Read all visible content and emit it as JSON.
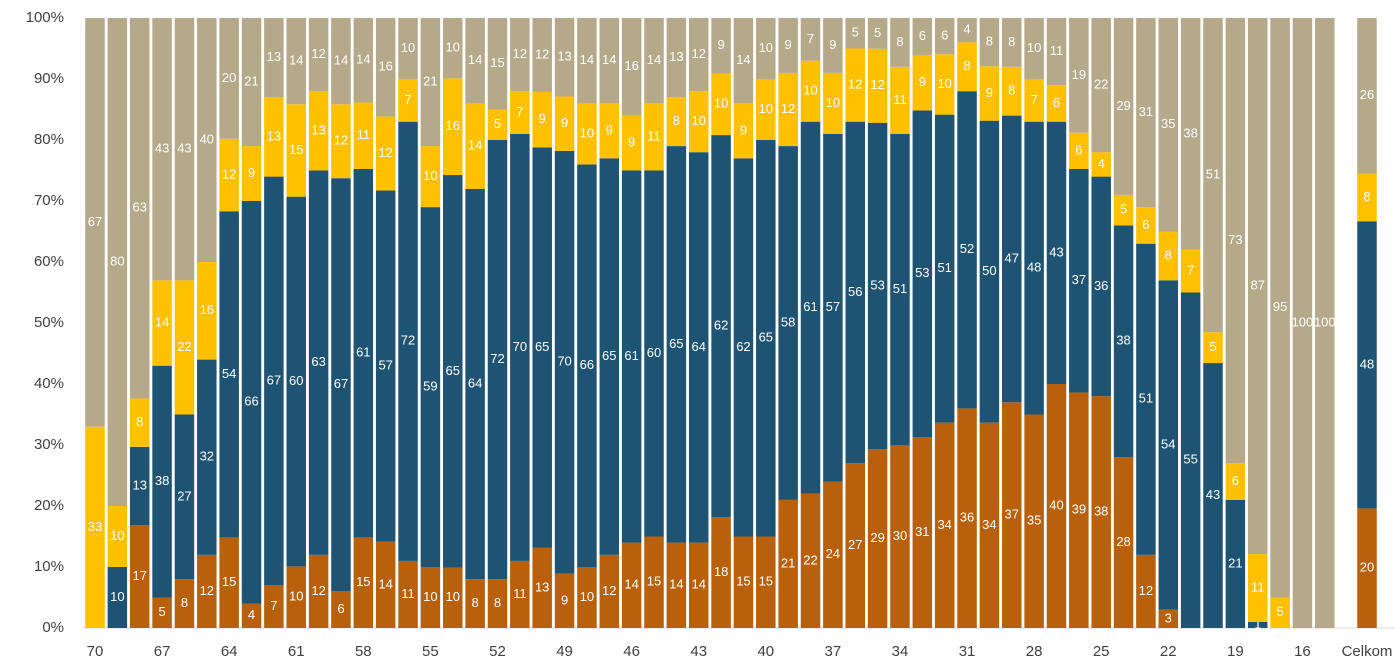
{
  "chart_data": {
    "type": "bar",
    "stacked": "percent",
    "categories": [
      "70",
      null,
      null,
      "67",
      null,
      null,
      "64",
      null,
      null,
      "61",
      null,
      null,
      "58",
      null,
      null,
      "55",
      null,
      null,
      "52",
      null,
      null,
      "49",
      null,
      null,
      "46",
      null,
      null,
      "43",
      null,
      null,
      "40",
      null,
      null,
      "37",
      null,
      null,
      "34",
      null,
      null,
      "31",
      null,
      null,
      "28",
      null,
      null,
      "25",
      null,
      null,
      "22",
      null,
      null,
      "19",
      null,
      null,
      "16",
      null,
      "Celkom"
    ],
    "series": [
      {
        "color": "#b8600b",
        "values": [
          0,
          0,
          17,
          5,
          8,
          12,
          15,
          4,
          7,
          10,
          12,
          6,
          15,
          14,
          11,
          10,
          10,
          8,
          8,
          11,
          13,
          9,
          10,
          12,
          14,
          15,
          14,
          14,
          18,
          15,
          15,
          21,
          22,
          24,
          27,
          29,
          30,
          31,
          34,
          36,
          34,
          37,
          35,
          40,
          39,
          38,
          28,
          12,
          3,
          0,
          0,
          0,
          0,
          0,
          0,
          0,
          20
        ]
      },
      {
        "color": "#1f5373",
        "values": [
          0,
          10,
          13,
          38,
          27,
          32,
          54,
          66,
          67,
          60,
          63,
          67,
          61,
          57,
          72,
          59,
          65,
          64,
          72,
          70,
          65,
          70,
          66,
          65,
          61,
          60,
          65,
          64,
          62,
          62,
          65,
          58,
          61,
          57,
          56,
          53,
          51,
          53,
          51,
          52,
          50,
          47,
          48,
          43,
          37,
          36,
          38,
          51,
          54,
          55,
          43,
          21,
          1,
          0,
          0,
          0,
          48
        ]
      },
      {
        "color": "#ffc000",
        "values": [
          33,
          10,
          8,
          14,
          22,
          16,
          12,
          9,
          13,
          15,
          13,
          12,
          11,
          12,
          7,
          10,
          16,
          14,
          5,
          7,
          9,
          9,
          10,
          9,
          9,
          11,
          8,
          10,
          10,
          9,
          10,
          12,
          10,
          10,
          12,
          12,
          11,
          9,
          10,
          8,
          9,
          8,
          7,
          6,
          6,
          4,
          5,
          6,
          8,
          7,
          5,
          6,
          11,
          5,
          0,
          0,
          8
        ]
      },
      {
        "color": "#b5a98a",
        "values": [
          67,
          80,
          63,
          43,
          43,
          40,
          20,
          21,
          13,
          14,
          12,
          14,
          14,
          16,
          10,
          21,
          10,
          14,
          15,
          12,
          12,
          13,
          14,
          14,
          16,
          14,
          13,
          12,
          9,
          14,
          10,
          9,
          7,
          9,
          5,
          5,
          8,
          6,
          6,
          4,
          8,
          8,
          10,
          11,
          19,
          22,
          29,
          31,
          35,
          38,
          51,
          73,
          87,
          95,
          100,
          100,
          26
        ]
      }
    ],
    "ylim": [
      0,
      100
    ],
    "yticks": [
      {
        "value": 0,
        "label": "0%"
      },
      {
        "value": 10,
        "label": "10%"
      },
      {
        "value": 20,
        "label": "20%"
      },
      {
        "value": 30,
        "label": "30%"
      },
      {
        "value": 40,
        "label": "40%"
      },
      {
        "value": 50,
        "label": "50%"
      },
      {
        "value": 60,
        "label": "60%"
      },
      {
        "value": 70,
        "label": "70%"
      },
      {
        "value": 80,
        "label": "80%"
      },
      {
        "value": 90,
        "label": "90%"
      },
      {
        "value": 100,
        "label": "100%"
      }
    ]
  }
}
